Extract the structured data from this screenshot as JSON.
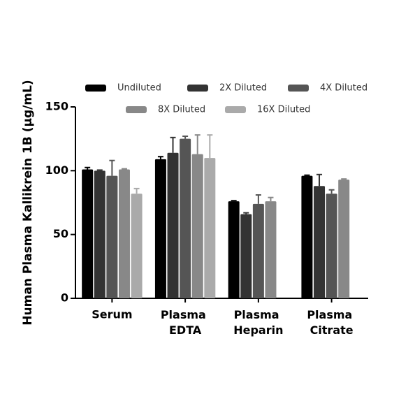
{
  "chart_data": {
    "type": "bar",
    "y_label": "Human Plasma Kallikrein 1B (μg/mL)",
    "categories": [
      "Serum",
      "Plasma EDTA",
      "Plasma Heparin",
      "Plasma Citrate"
    ],
    "series": [
      {
        "name": "Undiluted",
        "color": "#000000",
        "values": [
          101,
          109,
          76,
          96
        ],
        "errors": [
          1.5,
          2,
          0.5,
          0.5
        ]
      },
      {
        "name": "2X Diluted",
        "color": "#333333",
        "values": [
          100,
          114,
          66,
          88
        ],
        "errors": [
          0.5,
          12,
          1,
          9
        ]
      },
      {
        "name": "4X Diluted",
        "color": "#555555",
        "values": [
          96,
          125,
          74,
          82
        ],
        "errors": [
          12,
          2,
          7,
          3
        ]
      },
      {
        "name": "8X Diluted",
        "color": "#888888",
        "values": [
          101,
          113,
          76,
          93
        ],
        "errors": [
          0.5,
          15,
          3,
          0.5
        ]
      },
      {
        "name": "16X Diluted",
        "color": "#aaaaaa",
        "values": [
          82,
          110,
          null,
          null
        ],
        "errors": [
          4,
          18,
          null,
          null
        ]
      }
    ],
    "ylim": [
      0,
      150
    ],
    "yticks": [
      0,
      50,
      100,
      150
    ],
    "grid": false
  }
}
